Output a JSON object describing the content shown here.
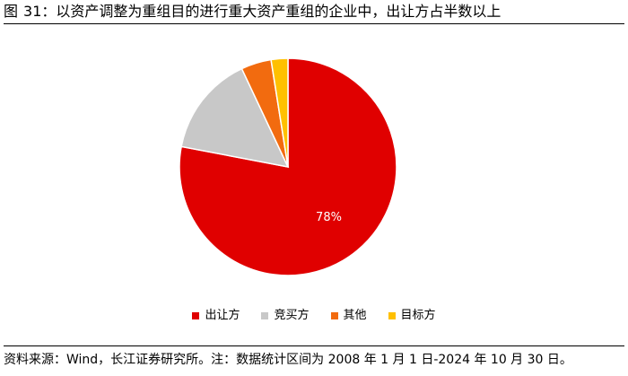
{
  "figure": {
    "label": "图",
    "number": "31：",
    "title": "以资产调整为重组目的进行重大资产重组的企业中，出让方占半数以上"
  },
  "source_note": "资料来源：Wind，长江证券研究所。注：数据统计区间为 2008 年 1 月 1 日-2024 年 10 月 30 日。",
  "chart_data": {
    "type": "pie",
    "categories": [
      "出让方",
      "竞买方",
      "其他",
      "目标方"
    ],
    "values": [
      78,
      15,
      4.5,
      2.5
    ],
    "colors": [
      "#E00000",
      "#C8C8C8",
      "#F26B0F",
      "#FFC000"
    ],
    "data_labels": [
      "78%",
      "",
      "",
      ""
    ],
    "legend_position": "bottom"
  }
}
